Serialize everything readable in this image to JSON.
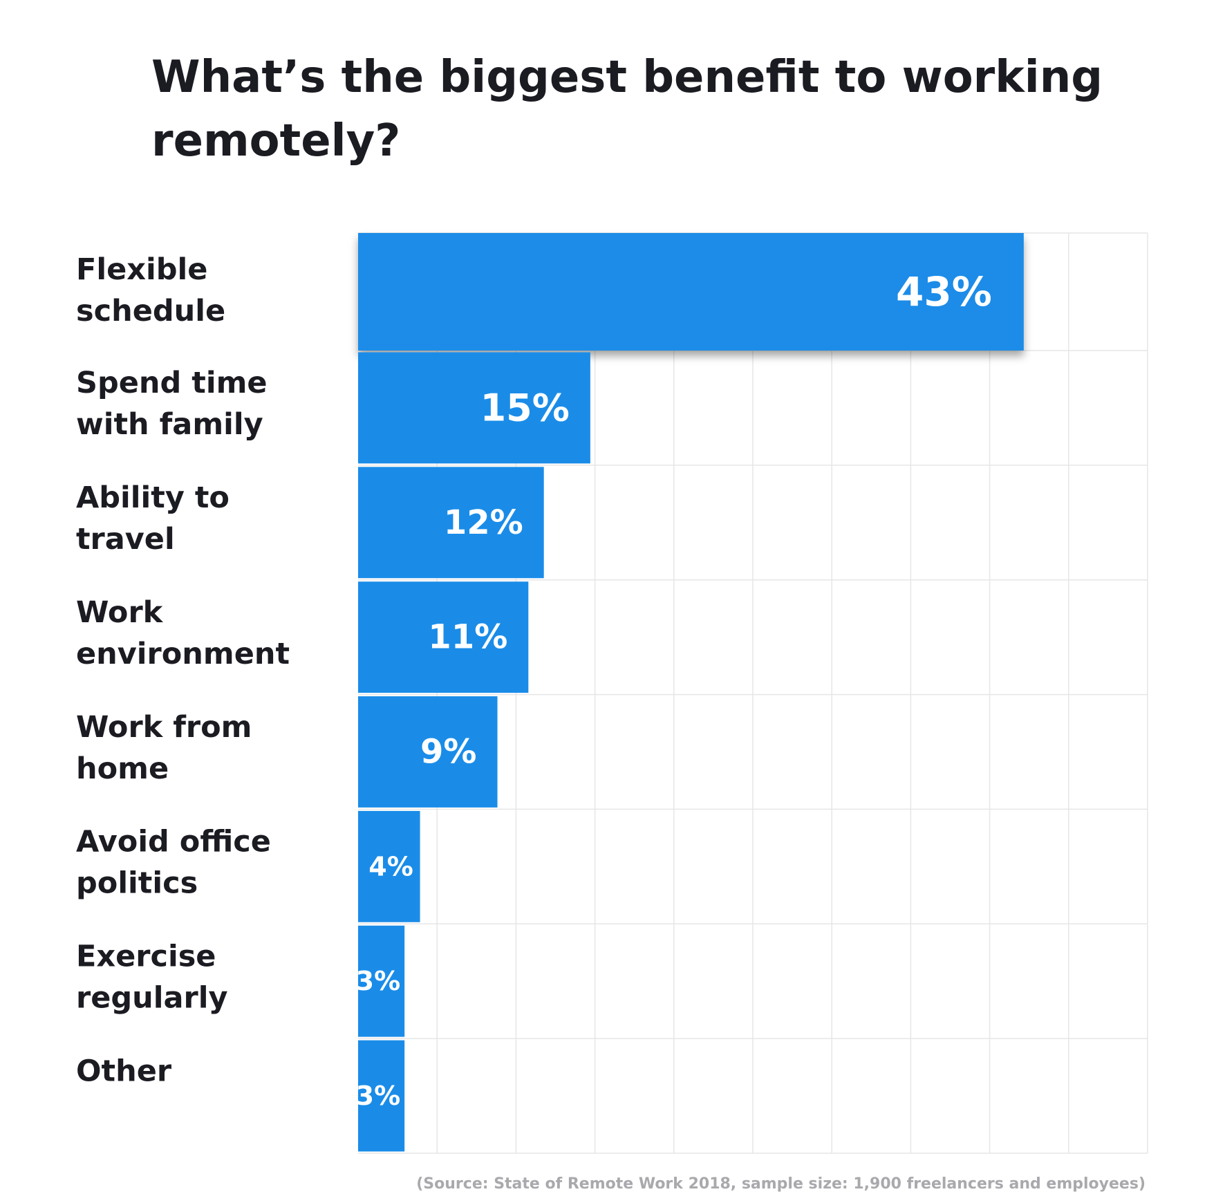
{
  "title": "What’s the biggest benefit to working remotely?",
  "source": "(Source: State of Remote Work 2018, sample size: 1,900 freelancers and employees)",
  "colors": {
    "bar": "#1a8ce8",
    "grid": "#e6e6e6",
    "label_text": "#1b1b22",
    "value_text": "#ffffff",
    "source_text": "#a9a9ad"
  },
  "chart_data": {
    "type": "bar",
    "orientation": "horizontal",
    "title": "What’s the biggest benefit to working remotely?",
    "categories": [
      [
        "Flexible",
        "schedule"
      ],
      [
        "Spend time",
        "with family"
      ],
      [
        "Ability to",
        "travel"
      ],
      [
        "Work",
        "environment"
      ],
      [
        "Work from",
        "home"
      ],
      [
        "Avoid office",
        "politics"
      ],
      [
        "Exercise",
        "regularly"
      ],
      [
        "Other"
      ]
    ],
    "values": [
      43,
      15,
      12,
      11,
      9,
      4,
      3,
      3
    ],
    "value_labels": [
      "43%",
      "15%",
      "12%",
      "11%",
      "9%",
      "4%",
      "3%",
      "3%"
    ],
    "unit": "%",
    "xlim": [
      0,
      51
    ],
    "grid": true,
    "highlight_index": 0
  }
}
